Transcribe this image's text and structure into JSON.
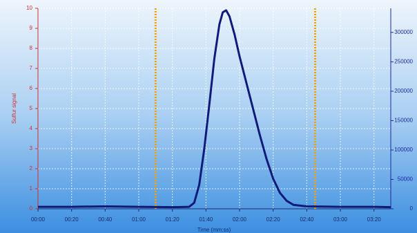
{
  "chart_data": {
    "type": "line",
    "ylabel": "Sulfur signal",
    "xlabel": "Time (mm:ss)",
    "xlim": [
      0,
      210
    ],
    "xticks": [
      {
        "value": 0,
        "label": "00:00"
      },
      {
        "value": 20,
        "label": "00:20"
      },
      {
        "value": 40,
        "label": "00:40"
      },
      {
        "value": 60,
        "label": "01:00"
      },
      {
        "value": 80,
        "label": "01:20"
      },
      {
        "value": 100,
        "label": "01:40"
      },
      {
        "value": 120,
        "label": "02:00"
      },
      {
        "value": 140,
        "label": "02:20"
      },
      {
        "value": 160,
        "label": "02:40"
      },
      {
        "value": 180,
        "label": "03:00"
      },
      {
        "value": 200,
        "label": "03:20"
      }
    ],
    "ylim": [
      0,
      10
    ],
    "yticks": [
      0,
      1,
      2,
      3,
      4,
      5,
      6,
      7,
      8,
      9,
      10
    ],
    "y2lim": [
      0,
      341000
    ],
    "y2ticks": [
      0,
      50000,
      100000,
      150000,
      200000,
      250000,
      300000
    ],
    "grid": true,
    "markers": [
      70,
      165
    ],
    "marker_color": "#f5a000",
    "series": [
      {
        "color": "#101a7a",
        "x": [
          0,
          20,
          40,
          60,
          80,
          90,
          93,
          96,
          99,
          102,
          105,
          108,
          110,
          112,
          114,
          117,
          120,
          124,
          128,
          132,
          136,
          140,
          144,
          148,
          152,
          160,
          180,
          200,
          210
        ],
        "values": [
          0.1,
          0.1,
          0.12,
          0.1,
          0.08,
          0.1,
          0.3,
          1.2,
          3,
          5.2,
          7.5,
          9.2,
          9.8,
          9.9,
          9.6,
          8.7,
          7.6,
          6.3,
          5,
          3.7,
          2.5,
          1.5,
          0.8,
          0.4,
          0.2,
          0.12,
          0.1,
          0.1,
          0.08
        ]
      }
    ]
  }
}
